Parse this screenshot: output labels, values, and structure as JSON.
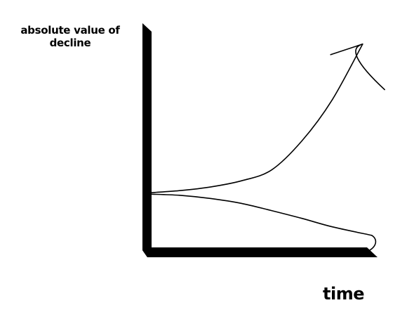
{
  "chart_data": {
    "type": "line",
    "title": "",
    "ylabel": "absolute value of decline",
    "xlabel": "time",
    "grid": false,
    "ticks": false,
    "colors": {
      "axis": "#000000",
      "line": "#000000"
    },
    "series": [
      {
        "trend": "rising sharply, ending in an arrow",
        "x": [
          0,
          1,
          2,
          3,
          4,
          5,
          6,
          7
        ],
        "y": [
          0.6,
          1.5,
          3,
          5.5,
          10,
          22,
          39,
          62
        ]
      },
      {
        "trend": "slowly falling",
        "x": [
          0,
          1,
          2,
          3,
          4,
          5,
          6,
          7.3
        ],
        "y": [
          0,
          -0.5,
          -1.8,
          -3.8,
          -6.8,
          -10,
          -13.5,
          -17
        ]
      }
    ],
    "xlim": [
      0,
      8
    ],
    "ylim": [
      -22,
      68
    ]
  }
}
